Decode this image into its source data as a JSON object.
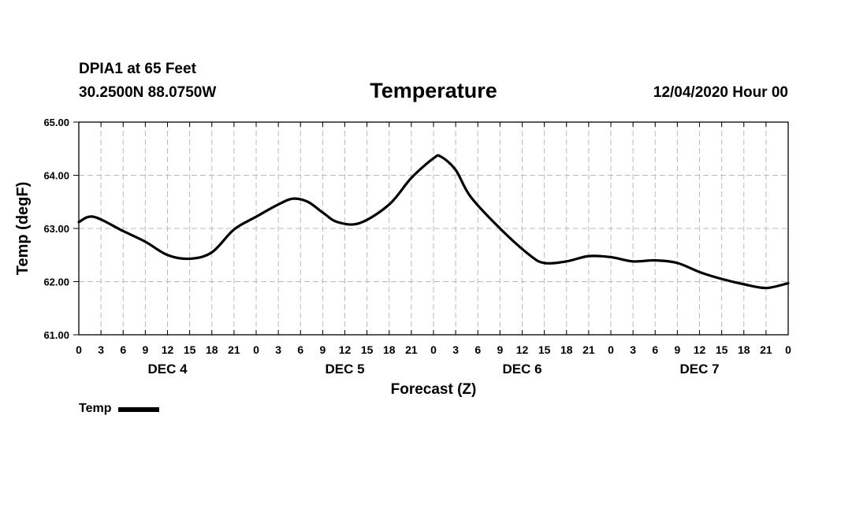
{
  "header": {
    "station": "DPIA1 at 65 Feet",
    "coords": "30.2500N 88.0750W",
    "title": "Temperature",
    "issued": "12/04/2020 Hour 00"
  },
  "legend": {
    "label": "Temp"
  },
  "chart_data": {
    "type": "line",
    "title": "Temperature",
    "xlabel": "Forecast (Z)",
    "ylabel": "Temp (degF)",
    "xlim": [
      0,
      96
    ],
    "ylim": [
      61.0,
      65.0
    ],
    "y_ticks": [
      "61.00",
      "62.00",
      "63.00",
      "64.00",
      "65.00"
    ],
    "x_tick_labels": [
      "0",
      "3",
      "6",
      "9",
      "12",
      "15",
      "18",
      "21",
      "0",
      "3",
      "6",
      "9",
      "12",
      "15",
      "18",
      "21",
      "0",
      "3",
      "6",
      "9",
      "12",
      "15",
      "18",
      "21",
      "0",
      "3",
      "6",
      "9",
      "12",
      "15",
      "18",
      "21",
      "0"
    ],
    "day_labels": [
      {
        "label": "DEC 4",
        "hour": 12
      },
      {
        "label": "DEC 5",
        "hour": 36
      },
      {
        "label": "DEC 6",
        "hour": 60
      },
      {
        "label": "DEC 7",
        "hour": 84
      }
    ],
    "grid": true,
    "series": [
      {
        "name": "Temp",
        "color": "#000000",
        "x": [
          0,
          2,
          6,
          9,
          12,
          15,
          18,
          21,
          24,
          27,
          29,
          31,
          33,
          35,
          38,
          42,
          45,
          48,
          49,
          51,
          53,
          57,
          61,
          63,
          66,
          69,
          72,
          75,
          78,
          81,
          84,
          87,
          90,
          93,
          96
        ],
        "values": [
          63.12,
          63.22,
          62.95,
          62.75,
          62.5,
          62.43,
          62.55,
          62.98,
          63.22,
          63.45,
          63.56,
          63.5,
          63.3,
          63.12,
          63.1,
          63.45,
          63.95,
          64.32,
          64.35,
          64.1,
          63.6,
          63.0,
          62.5,
          62.35,
          62.38,
          62.48,
          62.46,
          62.38,
          62.4,
          62.35,
          62.18,
          62.05,
          61.95,
          61.88,
          61.97
        ]
      }
    ]
  }
}
